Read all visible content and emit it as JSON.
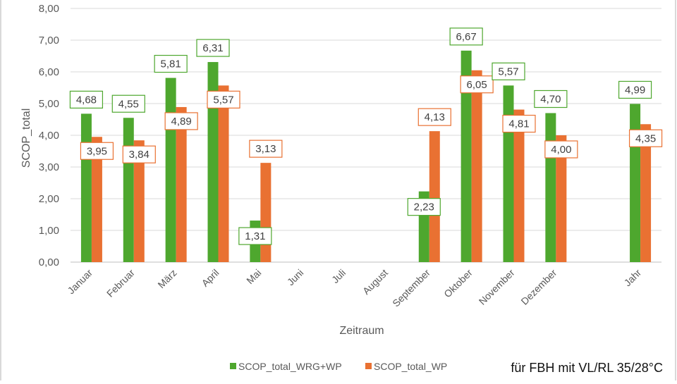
{
  "chart_data": {
    "type": "bar",
    "title": "",
    "xlabel": "Zeitraum",
    "ylabel": "SCOP_total",
    "ylim": [
      0,
      8
    ],
    "ytick_step": 1,
    "ytick_labels": [
      "0,00",
      "1,00",
      "2,00",
      "3,00",
      "4,00",
      "5,00",
      "6,00",
      "7,00",
      "8,00"
    ],
    "grid": true,
    "legend_position": "bottom",
    "categories": [
      "Januar",
      "Februar",
      "März",
      "April",
      "Mai",
      "Juni",
      "Juli",
      "August",
      "September",
      "Oktober",
      "November",
      "Dezember",
      "",
      "Jahr"
    ],
    "series": [
      {
        "name": "SCOP_total_WRG+WP",
        "color": "#4ea72e",
        "values": [
          4.68,
          4.55,
          5.81,
          6.31,
          1.31,
          null,
          null,
          null,
          2.23,
          6.67,
          5.57,
          4.7,
          null,
          4.99
        ],
        "labels": [
          "4,68",
          "4,55",
          "5,81",
          "6,31",
          "1,31",
          null,
          null,
          null,
          "2,23",
          "6,67",
          "5,57",
          "4,70",
          null,
          "4,99"
        ]
      },
      {
        "name": "SCOP_total_WP",
        "color": "#e97132",
        "values": [
          3.95,
          3.84,
          4.89,
          5.57,
          3.13,
          null,
          null,
          null,
          4.13,
          6.05,
          4.81,
          4.0,
          null,
          4.35
        ],
        "labels": [
          "3,95",
          "3,84",
          "4,89",
          "5,57",
          "3,13",
          null,
          null,
          null,
          "4,13",
          "6,05",
          "4,81",
          "4,00",
          null,
          "4,35"
        ]
      }
    ],
    "annotation": "für FBH mit VL/RL 35/28°C"
  }
}
